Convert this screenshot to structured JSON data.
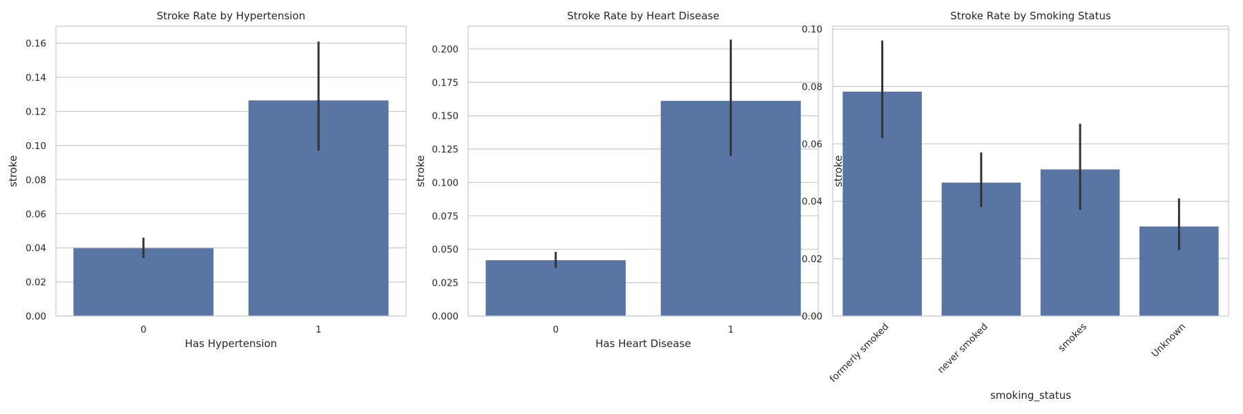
{
  "chart_data": [
    {
      "type": "bar",
      "title": "Stroke Rate by Hypertension",
      "xlabel": "Has Hypertension",
      "ylabel": "stroke",
      "categories": [
        "0",
        "1"
      ],
      "values": [
        0.0398,
        0.1265
      ],
      "error_low": [
        0.034,
        0.097
      ],
      "error_high": [
        0.046,
        0.161
      ],
      "ylim": [
        0,
        0.17
      ],
      "yticks": [
        0.0,
        0.02,
        0.04,
        0.06,
        0.08,
        0.1,
        0.12,
        0.14,
        0.16
      ],
      "ytick_labels": [
        "0.00",
        "0.02",
        "0.04",
        "0.06",
        "0.08",
        "0.10",
        "0.12",
        "0.14",
        "0.16"
      ],
      "grid": true,
      "xtick_rotation": 0
    },
    {
      "type": "bar",
      "title": "Stroke Rate by Heart Disease",
      "xlabel": "Has Heart Disease",
      "ylabel": "stroke",
      "categories": [
        "0",
        "1"
      ],
      "values": [
        0.0418,
        0.1611
      ],
      "error_low": [
        0.036,
        0.12
      ],
      "error_high": [
        0.048,
        0.207
      ],
      "ylim": [
        0,
        0.217
      ],
      "yticks": [
        0.0,
        0.025,
        0.05,
        0.075,
        0.1,
        0.125,
        0.15,
        0.175,
        0.2
      ],
      "ytick_labels": [
        "0.000",
        "0.025",
        "0.050",
        "0.075",
        "0.100",
        "0.125",
        "0.150",
        "0.175",
        "0.200"
      ],
      "grid": true,
      "xtick_rotation": 0
    },
    {
      "type": "bar",
      "title": "Stroke Rate by Smoking Status",
      "xlabel": "smoking_status",
      "ylabel": "stroke",
      "categories": [
        "formerly smoked",
        "never smoked",
        "smokes",
        "Unknown"
      ],
      "values": [
        0.0782,
        0.0465,
        0.0511,
        0.0312
      ],
      "error_low": [
        0.062,
        0.038,
        0.037,
        0.023
      ],
      "error_high": [
        0.096,
        0.057,
        0.067,
        0.041
      ],
      "ylim": [
        0,
        0.101
      ],
      "yticks": [
        0.0,
        0.02,
        0.04,
        0.06,
        0.08,
        0.1
      ],
      "ytick_labels": [
        "0.00",
        "0.02",
        "0.04",
        "0.06",
        "0.08",
        "0.10"
      ],
      "grid": true,
      "xtick_rotation": -45
    }
  ],
  "colors": {
    "bar": "#5975a4",
    "error_bar": "#333333",
    "grid": "#cccccc"
  }
}
